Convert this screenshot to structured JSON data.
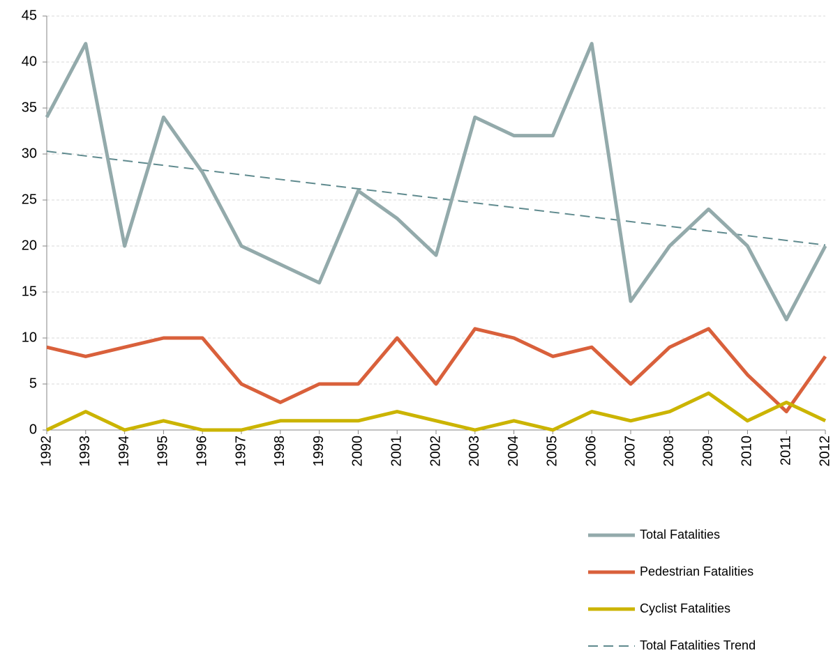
{
  "chart_data": {
    "type": "line",
    "categories": [
      "1992",
      "1993",
      "1994",
      "1995",
      "1996",
      "1997",
      "1998",
      "1999",
      "2000",
      "2001",
      "2002",
      "2003",
      "2004",
      "2005",
      "2006",
      "2007",
      "2008",
      "2009",
      "2010",
      "2011",
      "2012"
    ],
    "series": [
      {
        "name": "Total Fatalities",
        "color": "#93aaab",
        "values": [
          34,
          42,
          20,
          34,
          28,
          20,
          18,
          16,
          26,
          23,
          19,
          34,
          32,
          32,
          42,
          14,
          20,
          24,
          20,
          12,
          20
        ]
      },
      {
        "name": "Pedestrian Fatalities",
        "color": "#d9603b",
        "values": [
          9,
          8,
          9,
          10,
          10,
          5,
          3,
          5,
          5,
          10,
          5,
          11,
          10,
          8,
          9,
          5,
          9,
          11,
          6,
          2,
          8
        ]
      },
      {
        "name": "Cyclist Fatalities",
        "color": "#cbb400",
        "values": [
          0,
          2,
          0,
          1,
          0,
          0,
          1,
          1,
          1,
          2,
          1,
          0,
          1,
          0,
          2,
          1,
          2,
          4,
          1,
          3,
          1
        ]
      },
      {
        "name": "Total Fatalities Trend",
        "color": "#5f8a8e",
        "style": "dashed",
        "values": [
          30.3,
          29.79,
          29.28,
          28.77,
          28.26,
          27.75,
          27.24,
          26.73,
          26.22,
          25.71,
          25.2,
          24.69,
          24.18,
          23.67,
          23.16,
          22.65,
          22.14,
          21.63,
          21.12,
          20.61,
          20.1
        ]
      }
    ],
    "ylim": [
      0,
      45
    ],
    "yticks": [
      0,
      5,
      10,
      15,
      20,
      25,
      30,
      35,
      40,
      45
    ],
    "grid": true,
    "legend": "bottom-right"
  }
}
